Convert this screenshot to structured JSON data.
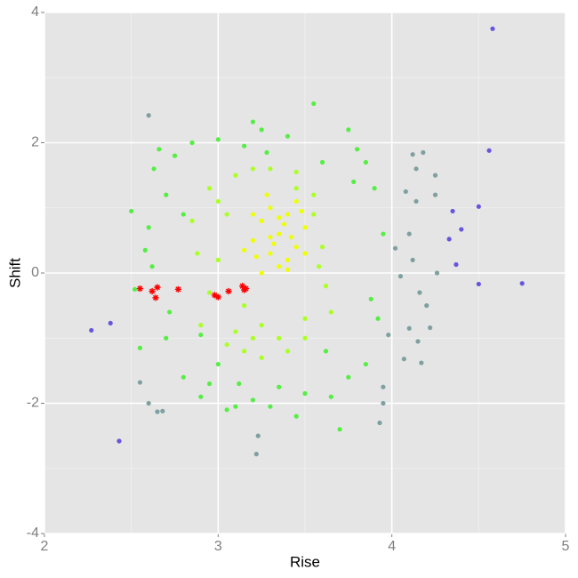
{
  "chart_data": {
    "type": "scatter",
    "xlabel": "Rise",
    "ylabel": "Shift",
    "xlim": [
      2,
      5
    ],
    "xticks": [
      2,
      3,
      4,
      5
    ],
    "ylim": [
      -4,
      4
    ],
    "yticks": [
      4,
      2,
      0,
      -2,
      -4
    ],
    "grid": true,
    "series": [
      {
        "color": "#55ee44",
        "marker": "circle",
        "x": [
          2.5,
          2.52,
          2.55,
          2.58,
          2.6,
          2.63,
          2.66,
          2.7,
          2.72,
          2.75,
          2.8,
          2.85,
          2.9,
          2.95,
          3.0,
          3.05,
          3.1,
          3.15,
          3.2,
          3.25,
          3.3,
          3.4,
          3.5,
          3.55,
          3.6,
          3.65,
          3.7,
          3.75,
          3.8,
          3.85,
          3.9,
          3.95,
          3.85,
          3.75,
          2.8,
          2.9,
          3.0,
          3.12,
          3.28,
          3.45,
          3.62,
          3.78,
          2.7,
          2.62,
          3.88,
          3.92,
          3.2,
          3.35
        ],
        "values": [
          0.95,
          -0.25,
          -1.15,
          0.35,
          0.7,
          1.6,
          1.9,
          1.2,
          -0.6,
          1.8,
          -1.6,
          2.0,
          -1.9,
          -1.7,
          2.05,
          -2.1,
          -2.05,
          1.95,
          -1.95,
          2.2,
          -2.05,
          2.1,
          -1.85,
          2.6,
          1.7,
          -1.9,
          -2.4,
          2.2,
          1.9,
          1.7,
          1.3,
          0.6,
          -1.4,
          -1.6,
          0.9,
          -0.95,
          -1.4,
          -1.7,
          1.85,
          -2.2,
          -1.2,
          1.4,
          -1.0,
          0.1,
          -0.4,
          -0.7,
          2.32,
          -1.75
        ]
      },
      {
        "color": "#aaff22",
        "marker": "circle",
        "x": [
          2.85,
          2.9,
          2.95,
          3.0,
          3.05,
          3.1,
          3.15,
          3.2,
          3.25,
          3.3,
          3.4,
          3.45,
          3.5,
          3.55,
          3.6,
          3.65,
          2.95,
          3.05,
          3.15,
          3.25,
          3.35,
          3.45,
          3.55,
          3.62,
          2.88,
          3.0,
          3.1,
          3.2,
          3.5,
          3.58
        ],
        "values": [
          0.8,
          -0.8,
          1.3,
          0.2,
          -1.1,
          1.5,
          -1.2,
          1.6,
          -1.3,
          1.6,
          -1.2,
          1.55,
          -1.0,
          1.2,
          0.4,
          -0.6,
          -0.3,
          0.9,
          -0.5,
          -0.8,
          -1.0,
          1.3,
          0.9,
          -0.2,
          0.3,
          1.1,
          -0.9,
          -1.0,
          -0.7,
          0.1
        ]
      },
      {
        "color": "#eeff00",
        "marker": "circle",
        "x": [
          3.2,
          3.25,
          3.3,
          3.35,
          3.4,
          3.45,
          3.5,
          3.3,
          3.35,
          3.4,
          3.25,
          3.45,
          3.2,
          3.3,
          3.38,
          3.5,
          3.15,
          3.28,
          3.42,
          3.35,
          3.22,
          3.48,
          3.32,
          3.4
        ],
        "values": [
          0.5,
          0.8,
          0.3,
          0.6,
          0.9,
          0.4,
          0.7,
          1.0,
          0.1,
          0.2,
          0.0,
          1.1,
          0.9,
          0.55,
          0.75,
          0.3,
          0.35,
          1.2,
          0.55,
          0.85,
          0.25,
          0.95,
          0.45,
          0.05
        ]
      },
      {
        "color": "#7fa0a0",
        "marker": "circle",
        "x": [
          2.6,
          2.55,
          2.6,
          2.65,
          2.68,
          3.22,
          3.23,
          3.93,
          3.95,
          3.95,
          4.1,
          4.15,
          4.17,
          4.2,
          4.22,
          4.25,
          4.25,
          4.18,
          4.07,
          4.12,
          4.05,
          4.1,
          4.26,
          4.16,
          4.14,
          3.98,
          4.02,
          4.08,
          4.14,
          4.12
        ],
        "values": [
          2.42,
          -1.68,
          -2.0,
          -2.13,
          -2.12,
          -2.78,
          -2.5,
          -2.3,
          -2.0,
          -1.75,
          -0.85,
          -1.05,
          -1.38,
          -0.5,
          -0.84,
          1.2,
          1.5,
          1.85,
          -1.32,
          0.2,
          -0.05,
          0.6,
          0.0,
          -0.3,
          1.1,
          -0.95,
          0.38,
          1.25,
          1.6,
          1.82
        ]
      },
      {
        "color": "#6655dd",
        "marker": "circle",
        "x": [
          4.58,
          2.27,
          2.43,
          4.56,
          4.5,
          4.75,
          4.5,
          4.37,
          4.35,
          4.33,
          4.4,
          2.38
        ],
        "values": [
          3.75,
          -0.88,
          -2.58,
          1.88,
          1.02,
          -0.16,
          -0.17,
          0.13,
          0.95,
          0.52,
          0.67,
          -0.77
        ]
      },
      {
        "color": "#ff0000",
        "marker": "star",
        "x": [
          2.55,
          2.62,
          2.65,
          2.64,
          2.77,
          2.98,
          3.0,
          3.06,
          3.14,
          3.15,
          3.16
        ],
        "values": [
          -0.24,
          -0.28,
          -0.22,
          -0.38,
          -0.25,
          -0.34,
          -0.37,
          -0.28,
          -0.2,
          -0.26,
          -0.24
        ]
      }
    ]
  }
}
